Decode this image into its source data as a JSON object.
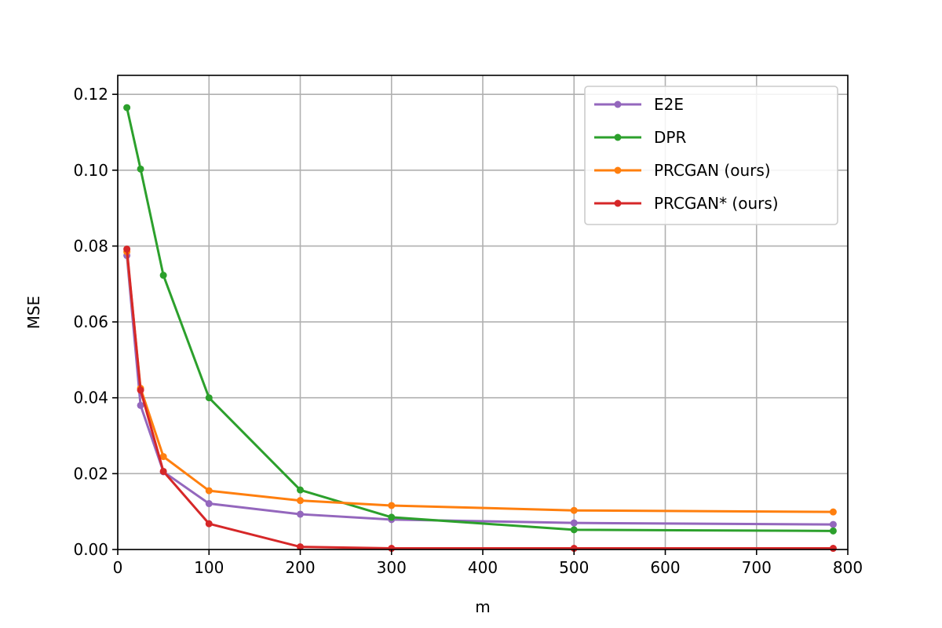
{
  "chart_data": {
    "type": "line",
    "xlabel": "m",
    "ylabel": "MSE",
    "xlim": [
      0,
      800
    ],
    "ylim": [
      0,
      0.125
    ],
    "xticks": [
      0,
      100,
      200,
      300,
      400,
      500,
      600,
      700,
      800
    ],
    "xtick_labels": [
      "0",
      "100",
      "200",
      "300",
      "400",
      "500",
      "600",
      "700",
      "800"
    ],
    "yticks": [
      0,
      0.02,
      0.04,
      0.06,
      0.08,
      0.1,
      0.12
    ],
    "ytick_labels": [
      "0.00",
      "0.02",
      "0.04",
      "0.06",
      "0.08",
      "0.10",
      "0.12"
    ],
    "grid": true,
    "legend_position": "top-right",
    "x": [
      10,
      25,
      50,
      100,
      200,
      300,
      500,
      784
    ],
    "series": [
      {
        "name": "E2E",
        "color": "#9467bd",
        "values": [
          0.0775,
          0.038,
          0.0205,
          0.0121,
          0.0093,
          0.0079,
          0.007,
          0.0066
        ]
      },
      {
        "name": "DPR",
        "color": "#2ca02c",
        "values": [
          0.1165,
          0.1003,
          0.0723,
          0.04,
          0.0157,
          0.0085,
          0.0052,
          0.0049
        ]
      },
      {
        "name": "PRCGAN (ours)",
        "color": "#ff7f0e",
        "values": [
          0.0785,
          0.0425,
          0.0245,
          0.0155,
          0.0129,
          0.0116,
          0.0103,
          0.0099
        ]
      },
      {
        "name": "PRCGAN* (ours)",
        "color": "#d62728",
        "values": [
          0.0792,
          0.042,
          0.0206,
          0.0068,
          0.0007,
          0.0003,
          0.0003,
          0.0003
        ]
      }
    ]
  }
}
